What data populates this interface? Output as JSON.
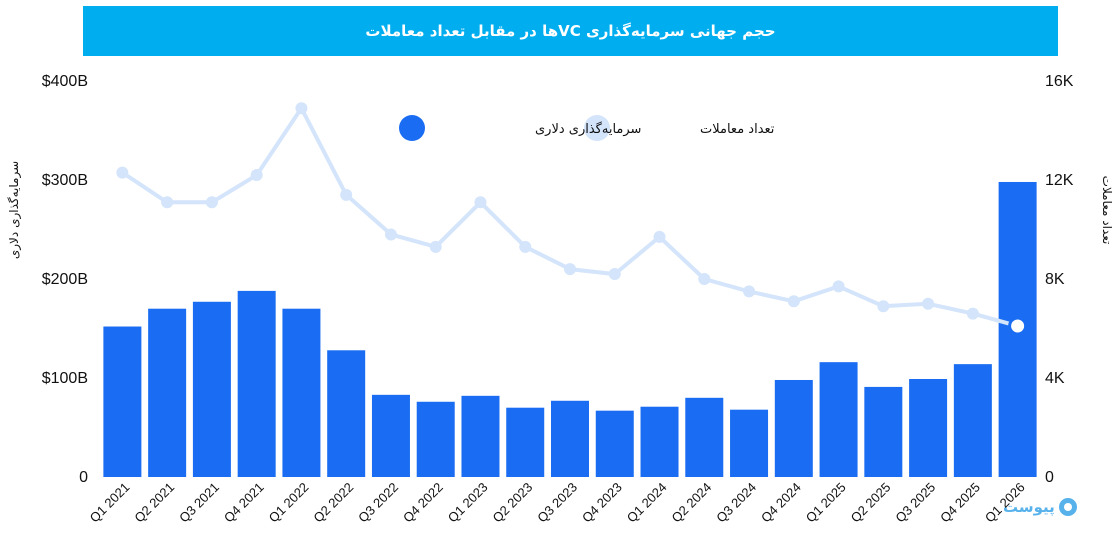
{
  "header": {
    "title": "حجم جهانی سرمایه‌گذاری VCها در مقابل تعداد معاملات"
  },
  "watermark": {
    "text": "پیوست"
  },
  "colors": {
    "title_bg": "#00aeef",
    "bar": "#1a6df2",
    "line": "#d3e4fb",
    "line_marker": "#d3e4fb",
    "last_marker_stroke": "#1a6df2"
  },
  "chart_data": {
    "type": "bar",
    "title": "حجم جهانی سرمایه‌گذاری VCها در مقابل تعداد معاملات",
    "categories": [
      "Q1 2021",
      "Q2 2021",
      "Q3 2021",
      "Q4 2021",
      "Q1 2022",
      "Q2 2022",
      "Q3 2022",
      "Q4 2022",
      "Q1 2023",
      "Q2 2023",
      "Q3 2023",
      "Q4 2023",
      "Q1 2024",
      "Q2 2024",
      "Q3 2024",
      "Q4 2024",
      "Q1 2025",
      "Q2 2025",
      "Q3 2025",
      "Q4 2025",
      "Q1 2026"
    ],
    "series": [
      {
        "name": "سرمایه‌گذاری دلاری",
        "kind": "bar",
        "axis": "left",
        "values": [
          152,
          170,
          177,
          188,
          170,
          128,
          83,
          76,
          82,
          70,
          77,
          67,
          71,
          80,
          68,
          98,
          116,
          91,
          99,
          114,
          298
        ]
      },
      {
        "name": "تعداد معاملات",
        "kind": "line",
        "axis": "right",
        "values": [
          12300,
          11100,
          11100,
          12200,
          14900,
          11400,
          9800,
          9300,
          11100,
          9300,
          8400,
          8200,
          9700,
          8000,
          7500,
          7100,
          7700,
          6900,
          7000,
          6600,
          6100
        ]
      }
    ],
    "ylabel": "سرمایه‌گذاری دلاری",
    "ylim": [
      0,
      400
    ],
    "yticks": [
      "0",
      "$100B",
      "$200B",
      "$300B",
      "$400B"
    ],
    "y2label": "تعداد معاملات",
    "y2lim": [
      0,
      16000
    ],
    "y2ticks": [
      "0",
      "4K",
      "8K",
      "12K",
      "16K"
    ],
    "legend_position": "top-center",
    "grid": false
  }
}
